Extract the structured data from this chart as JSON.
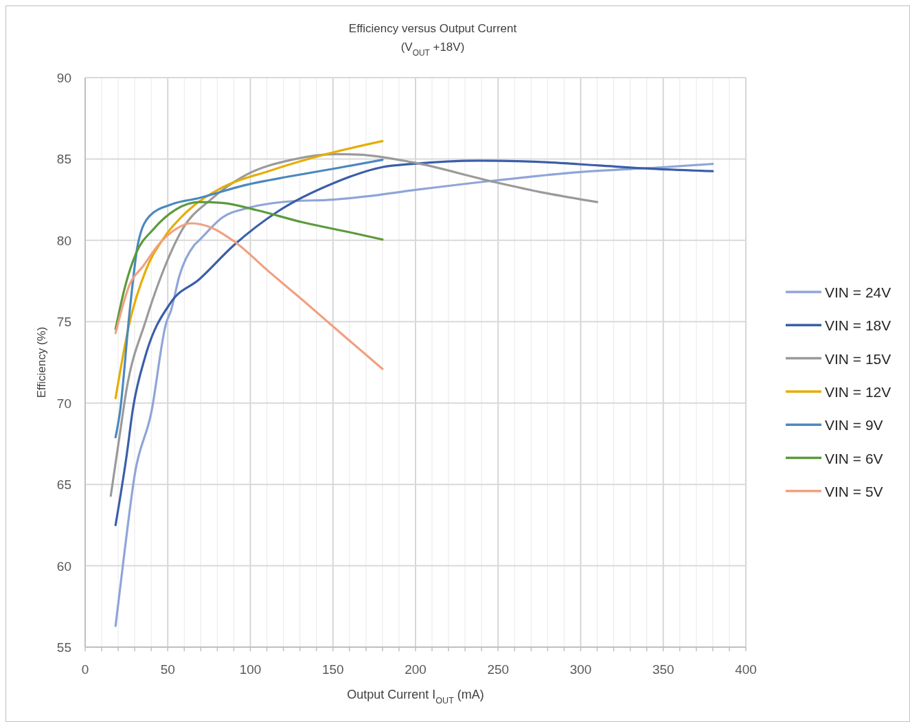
{
  "chart_data": {
    "type": "line",
    "title": "Efficiency versus Output Current",
    "subtitle": "(V$_{OUT}$ +18V)",
    "xlabel": "Output Current I$_{OUT}$ (mA)",
    "ylabel": "Efficiency (%)",
    "xlim": [
      0,
      400
    ],
    "ylim": [
      55,
      90
    ],
    "xticks": [
      0,
      {
        "value": 10,
        "label": null
      },
      {
        "value": 20,
        "label": null
      },
      {
        "value": 30,
        "label": null
      },
      {
        "value": 40,
        "label": null
      },
      50,
      {
        "value": 60,
        "label": null
      },
      {
        "value": 70,
        "label": null
      },
      {
        "value": 80,
        "label": null
      },
      {
        "value": 90,
        "label": null
      },
      100,
      {
        "value": 110,
        "label": null
      },
      {
        "value": 120,
        "label": null
      },
      {
        "value": 130,
        "label": null
      },
      {
        "value": 140,
        "label": null
      },
      150,
      {
        "value": 160,
        "label": null
      },
      {
        "value": 170,
        "label": null
      },
      {
        "value": 180,
        "label": null
      },
      {
        "value": 190,
        "label": null
      },
      200,
      {
        "value": 210,
        "label": null
      },
      {
        "value": 220,
        "label": null
      },
      {
        "value": 230,
        "label": null
      },
      {
        "value": 240,
        "label": null
      },
      250,
      {
        "value": 260,
        "label": null
      },
      {
        "value": 270,
        "label": null
      },
      {
        "value": 280,
        "label": null
      },
      {
        "value": 290,
        "label": null
      },
      300,
      {
        "value": 310,
        "label": null
      },
      {
        "value": 320,
        "label": null
      },
      {
        "value": 330,
        "label": null
      },
      {
        "value": 340,
        "label": null
      },
      350,
      {
        "value": 360,
        "label": null
      },
      {
        "value": 370,
        "label": null
      },
      {
        "value": 380,
        "label": null
      },
      {
        "value": 390,
        "label": null
      },
      400
    ],
    "yticks": [
      55,
      60,
      65,
      70,
      75,
      80,
      85,
      90
    ],
    "grid": true,
    "legend": "right",
    "marker": "none",
    "line_style": "solid",
    "series": [
      {
        "name": "VIN = 24V",
        "color": "#8fa5d8",
        "x": [
          18.4,
          24,
          30,
          40,
          49,
          52,
          57,
          66,
          69,
          83,
          99,
          125,
          150,
          170,
          200,
          250,
          300,
          351,
          380
        ],
        "values": [
          56.3,
          61,
          65.6,
          69.4,
          74.9,
          75.7,
          77.8,
          79.7,
          80,
          81.4,
          82,
          82.4,
          82.5,
          82.7,
          83.1,
          83.7,
          84.2,
          84.5,
          84.7
        ]
      },
      {
        "name": "VIN = 18V",
        "color": "#3a5ea8",
        "x": [
          18.4,
          25,
          29,
          36.5,
          52,
          69,
          90,
          117,
          150,
          180,
          198,
          238,
          279,
          311,
          343,
          380
        ],
        "values": [
          62.5,
          66.7,
          69.7,
          72.9,
          76.2,
          77.6,
          79.7,
          81.8,
          83.5,
          84.5,
          84.7,
          84.9,
          84.8,
          84.6,
          84.4,
          84.25
        ]
      },
      {
        "name": "VIN = 15V",
        "color": "#9a9a9a",
        "x": [
          15.5,
          21,
          25,
          36.5,
          46,
          59,
          76,
          97,
          125,
          152,
          166,
          198,
          247,
          279,
          310
        ],
        "values": [
          64.3,
          68.1,
          70.8,
          75,
          77.8,
          80.7,
          82.5,
          84,
          84.95,
          85.3,
          85.27,
          84.8,
          83.6,
          82.9,
          82.35
        ]
      },
      {
        "name": "VIN = 12V",
        "color": "#e6ad00",
        "x": [
          18.4,
          27,
          36.5,
          48,
          62,
          83,
          111,
          146,
          180
        ],
        "values": [
          70.3,
          75,
          78.1,
          80.2,
          81.8,
          83.25,
          84.25,
          85.3,
          86.1
        ]
      },
      {
        "name": "VIN = 9V",
        "color": "#4a88c0",
        "x": [
          18.4,
          21,
          27,
          32,
          39,
          52,
          69,
          97,
          125,
          153,
          180
        ],
        "values": [
          67.9,
          69.4,
          75.7,
          79.8,
          81.5,
          82.2,
          82.6,
          83.4,
          83.95,
          84.45,
          84.95
        ]
      },
      {
        "name": "VIN = 6V",
        "color": "#5b9a3c",
        "x": [
          18.4,
          24,
          31,
          41,
          55,
          69,
          83,
          104,
          132,
          160,
          180
        ],
        "values": [
          74.55,
          77.1,
          79.25,
          80.65,
          81.9,
          82.35,
          82.3,
          81.85,
          81.1,
          80.5,
          80.05
        ]
      },
      {
        "name": "VIN = 5V",
        "color": "#f0a080",
        "x": [
          18.4,
          27,
          35,
          45,
          55,
          64,
          76,
          90,
          111,
          132,
          153,
          180
        ],
        "values": [
          74.3,
          77.3,
          78.4,
          79.8,
          80.7,
          81.05,
          80.8,
          79.95,
          78.1,
          76.3,
          74.45,
          72.1
        ]
      }
    ]
  }
}
